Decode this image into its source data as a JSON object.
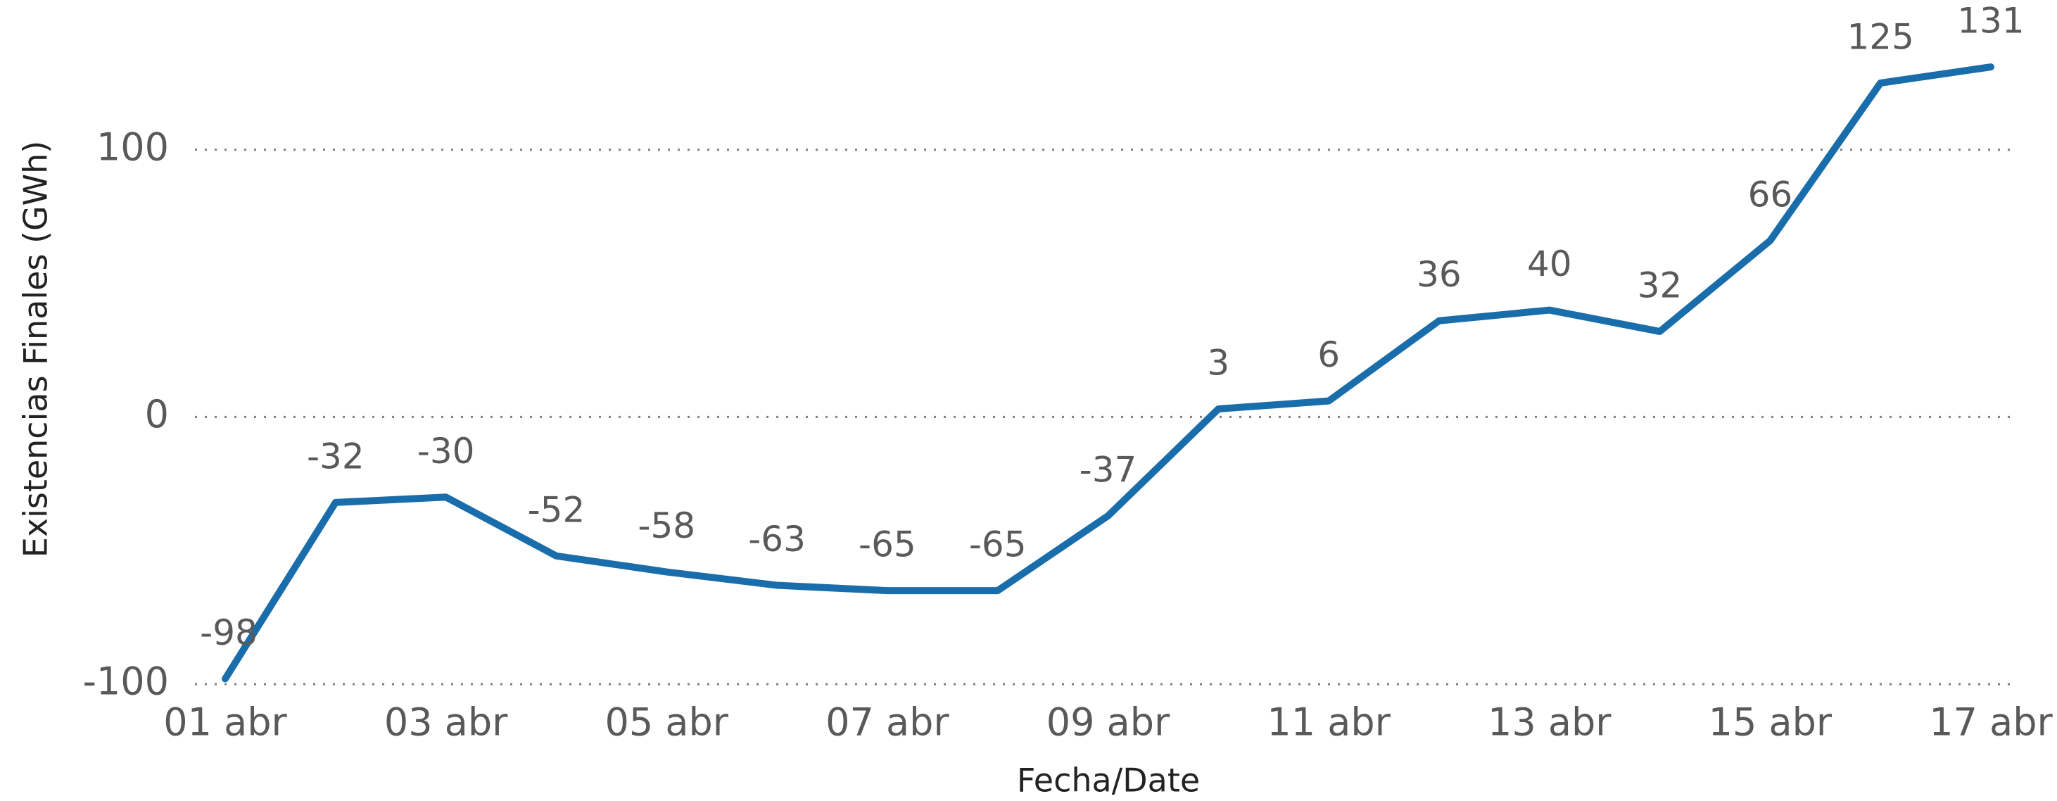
{
  "chart_data": {
    "type": "line",
    "x_label": "Fecha/Date",
    "y_label": "Existencias Finales (GWh)",
    "categories": [
      "01 abr",
      null,
      "03 abr",
      null,
      "05 abr",
      null,
      "07 abr",
      null,
      "09 abr",
      null,
      "11 abr",
      null,
      "13 abr",
      null,
      "15 abr",
      null,
      "17 abr"
    ],
    "series": [
      {
        "name": "Existencias Finales",
        "color": "#1a6dab",
        "values": [
          -98,
          -32,
          -30,
          -52,
          -58,
          -63,
          -65,
          -65,
          -37,
          3,
          6,
          36,
          40,
          32,
          66,
          125,
          131
        ]
      }
    ],
    "ylim": [
      -100,
      150
    ],
    "yticks": [
      -100,
      0,
      100
    ],
    "grid": true
  }
}
